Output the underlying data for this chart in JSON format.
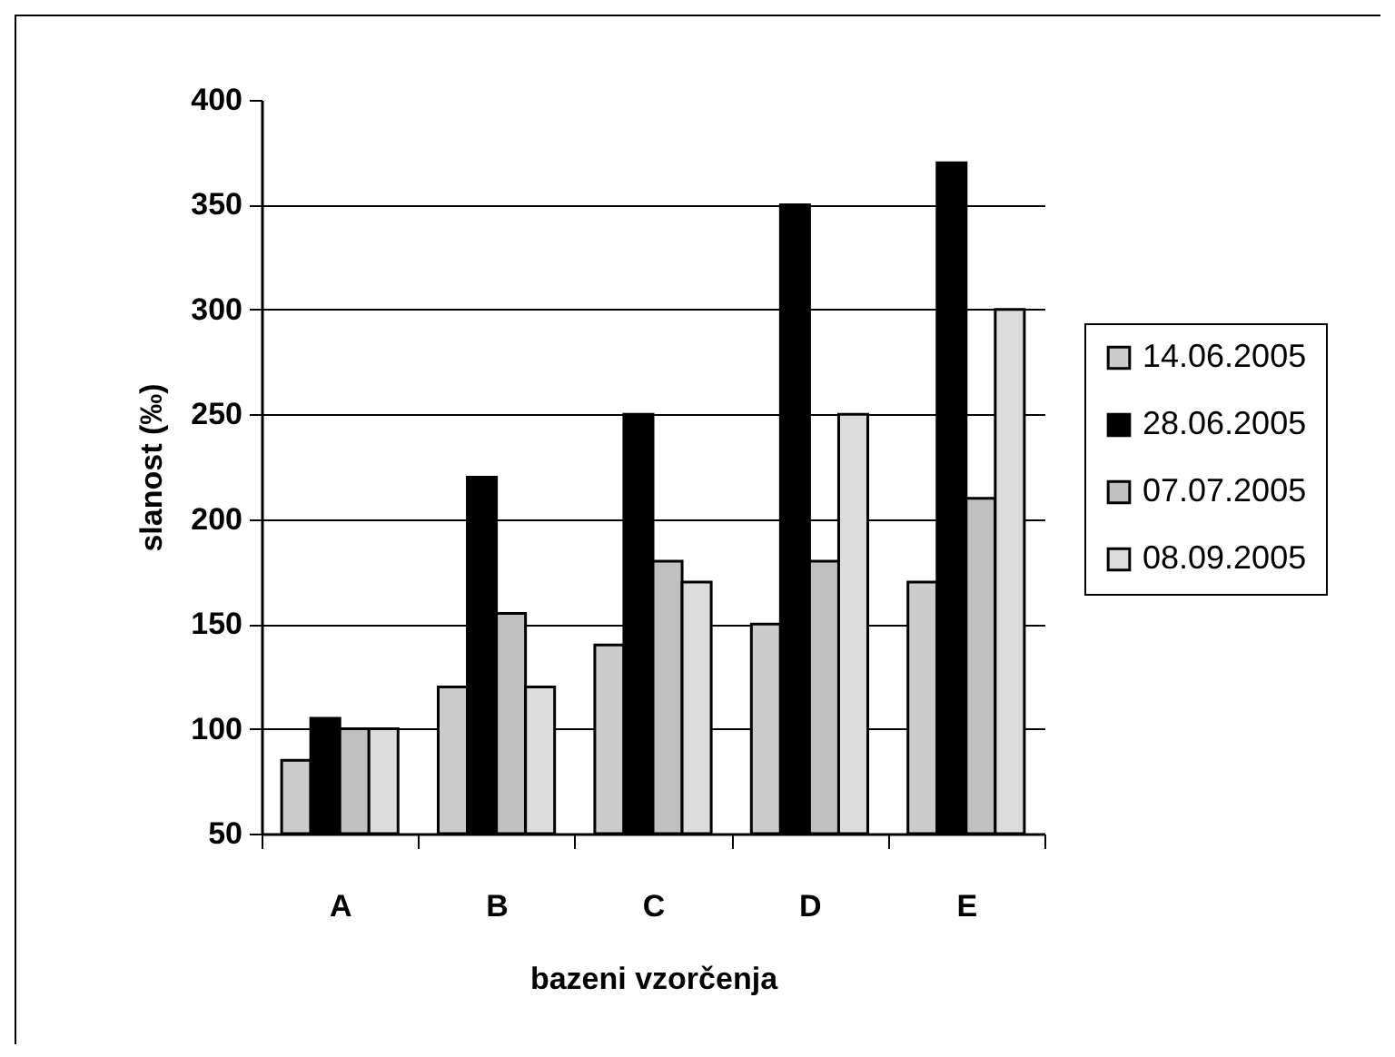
{
  "chart_data": {
    "type": "bar",
    "xlabel": "bazeni vzorčenja",
    "ylabel": "slanost (‰)",
    "categories": [
      "A",
      "B",
      "C",
      "D",
      "E"
    ],
    "series": [
      {
        "name": "14.06.2005",
        "color": "#cccccc",
        "values": [
          85,
          120,
          140,
          150,
          170
        ]
      },
      {
        "name": "28.06.2005",
        "color": "#000000",
        "values": [
          105,
          220,
          250,
          350,
          370
        ]
      },
      {
        "name": "07.07.2005",
        "color": "#c0c0c0",
        "values": [
          100,
          155,
          180,
          180,
          210
        ]
      },
      {
        "name": "08.09.2005",
        "color": "#dcdcdc",
        "values": [
          100,
          120,
          170,
          250,
          300
        ]
      }
    ],
    "ylim": [
      50,
      400
    ],
    "yticks": [
      50,
      100,
      150,
      200,
      250,
      300,
      350,
      400
    ],
    "grid": "y",
    "legend": "right"
  }
}
